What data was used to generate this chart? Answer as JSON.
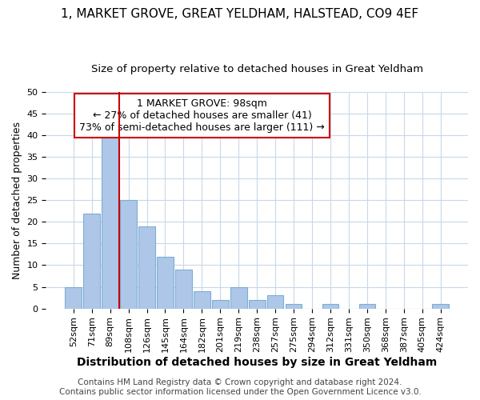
{
  "title": "1, MARKET GROVE, GREAT YELDHAM, HALSTEAD, CO9 4EF",
  "subtitle": "Size of property relative to detached houses in Great Yeldham",
  "xlabel": "Distribution of detached houses by size in Great Yeldham",
  "ylabel": "Number of detached properties",
  "bar_labels": [
    "52sqm",
    "71sqm",
    "89sqm",
    "108sqm",
    "126sqm",
    "145sqm",
    "164sqm",
    "182sqm",
    "201sqm",
    "219sqm",
    "238sqm",
    "257sqm",
    "275sqm",
    "294sqm",
    "312sqm",
    "331sqm",
    "350sqm",
    "368sqm",
    "387sqm",
    "405sqm",
    "424sqm"
  ],
  "bar_values": [
    5,
    22,
    41,
    25,
    19,
    12,
    9,
    4,
    2,
    5,
    2,
    3,
    1,
    0,
    1,
    0,
    1,
    0,
    0,
    0,
    1
  ],
  "bar_color": "#aec6e8",
  "bar_edge_color": "#7bafd4",
  "vline_color": "#cc0000",
  "vline_pos": 2.5,
  "ylim": [
    0,
    50
  ],
  "yticks": [
    0,
    5,
    10,
    15,
    20,
    25,
    30,
    35,
    40,
    45,
    50
  ],
  "annotation_title": "1 MARKET GROVE: 98sqm",
  "annotation_line1": "← 27% of detached houses are smaller (41)",
  "annotation_line2": "73% of semi-detached houses are larger (111) →",
  "annotation_box_edge": "#cc0000",
  "footer_line1": "Contains HM Land Registry data © Crown copyright and database right 2024.",
  "footer_line2": "Contains public sector information licensed under the Open Government Licence v3.0.",
  "background_color": "#ffffff",
  "grid_color": "#c8d8e8",
  "title_fontsize": 11,
  "subtitle_fontsize": 9.5,
  "xlabel_fontsize": 10,
  "ylabel_fontsize": 9,
  "tick_fontsize": 8,
  "annotation_fontsize": 9,
  "footer_fontsize": 7.5
}
